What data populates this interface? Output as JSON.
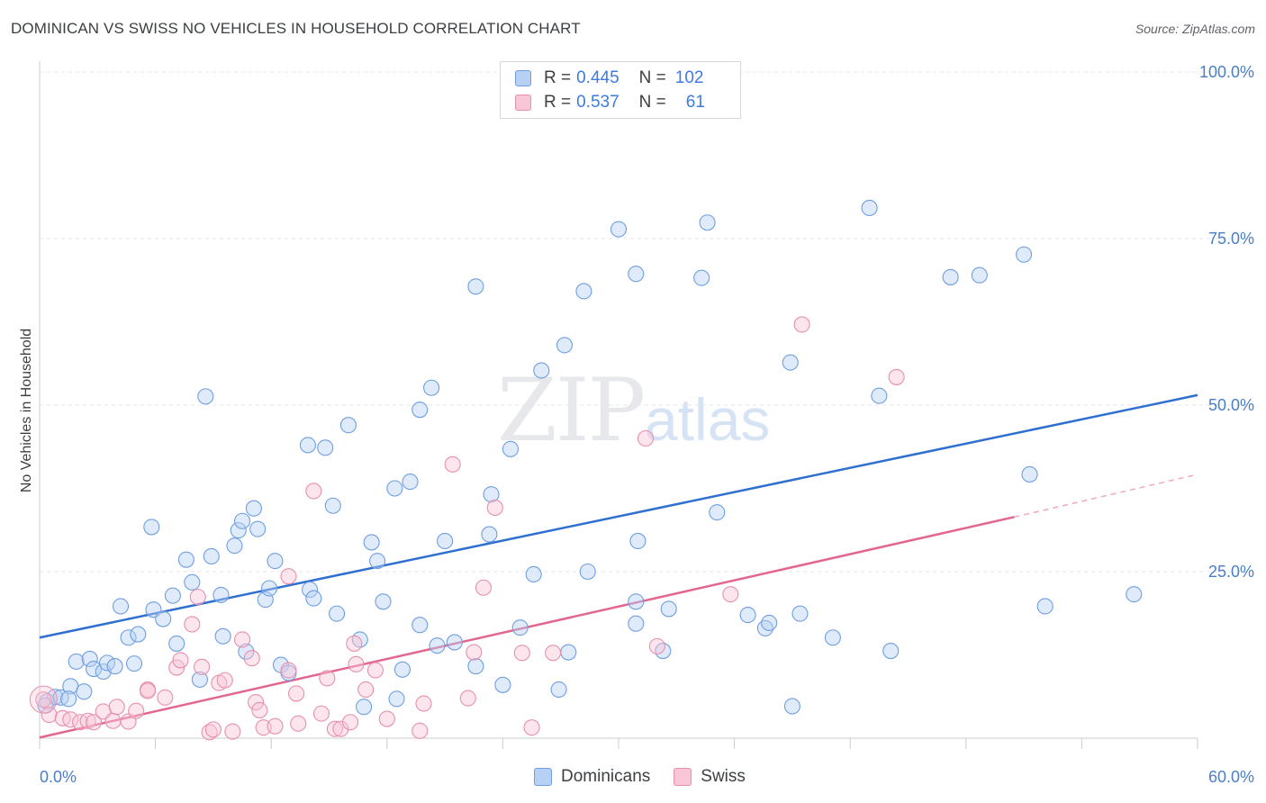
{
  "title": "DOMINICAN VS SWISS NO VEHICLES IN HOUSEHOLD CORRELATION CHART",
  "source": "Source: ZipAtlas.com",
  "watermark_left": "ZIP",
  "watermark_right": "atlas",
  "legend": {
    "rows": [
      {
        "r_label": "R =",
        "r_value": "0.445",
        "n_label": "N =",
        "n_value": "102",
        "color": "#b7d1f5",
        "border": "#6f9fe0"
      },
      {
        "r_label": "R =",
        "r_value": "0.537",
        "n_label": "N =",
        "n_value": "61",
        "color": "#f8c6d6",
        "border": "#e690ad"
      }
    ]
  },
  "bottom_legend": [
    {
      "label": "Dominicans",
      "color": "#b7d1f5",
      "border": "#6f9fe0"
    },
    {
      "label": "Swiss",
      "color": "#f8c6d6",
      "border": "#e690ad"
    }
  ],
  "chart_data": {
    "type": "scatter",
    "title": "DOMINICAN VS SWISS NO VEHICLES IN HOUSEHOLD CORRELATION CHART",
    "xlabel": "",
    "ylabel": "No Vehicles in Household",
    "xlim": [
      0,
      60
    ],
    "ylim": [
      0,
      100
    ],
    "x_ticks": [
      "0.0%",
      "60.0%"
    ],
    "y_ticks": [
      {
        "value": 25,
        "label": "25.0%"
      },
      {
        "value": 50,
        "label": "50.0%"
      },
      {
        "value": 75,
        "label": "75.0%"
      },
      {
        "value": 100,
        "label": "100.0%"
      }
    ],
    "grid": true,
    "legend_position": "top-center",
    "series": [
      {
        "name": "Dominicans",
        "color": "#6f9fe0",
        "fill": "rgba(183,209,245,0.45)",
        "trend": {
          "x": [
            0,
            60
          ],
          "y": [
            15.1,
            51.5
          ],
          "color": "#2f6fd0"
        },
        "points": [
          [
            0.4,
            5.5
          ],
          [
            0.8,
            6.2
          ],
          [
            1.1,
            6.1
          ],
          [
            1.6,
            7.8
          ],
          [
            1.9,
            11.5
          ],
          [
            2.3,
            7.0
          ],
          [
            2.6,
            11.9
          ],
          [
            2.8,
            10.4
          ],
          [
            3.3,
            10.0
          ],
          [
            3.5,
            11.3
          ],
          [
            3.9,
            10.8
          ],
          [
            4.2,
            19.8
          ],
          [
            4.6,
            15.1
          ],
          [
            4.9,
            11.2
          ],
          [
            5.1,
            15.6
          ],
          [
            5.8,
            31.7
          ],
          [
            5.9,
            19.3
          ],
          [
            6.4,
            17.9
          ],
          [
            6.9,
            21.4
          ],
          [
            7.1,
            14.2
          ],
          [
            7.6,
            26.8
          ],
          [
            7.9,
            23.4
          ],
          [
            8.3,
            8.8
          ],
          [
            8.6,
            51.3
          ],
          [
            8.9,
            27.3
          ],
          [
            9.4,
            21.5
          ],
          [
            9.5,
            15.3
          ],
          [
            10.1,
            28.9
          ],
          [
            10.3,
            31.2
          ],
          [
            10.5,
            32.6
          ],
          [
            10.7,
            13.0
          ],
          [
            11.1,
            34.5
          ],
          [
            11.3,
            31.4
          ],
          [
            11.7,
            20.8
          ],
          [
            11.9,
            22.5
          ],
          [
            12.2,
            26.6
          ],
          [
            12.5,
            11.0
          ],
          [
            12.9,
            9.8
          ],
          [
            13.9,
            44.0
          ],
          [
            14.0,
            22.3
          ],
          [
            14.2,
            21.0
          ],
          [
            14.8,
            43.6
          ],
          [
            15.2,
            34.9
          ],
          [
            15.4,
            18.7
          ],
          [
            16.0,
            47.0
          ],
          [
            16.6,
            14.8
          ],
          [
            16.8,
            4.7
          ],
          [
            17.2,
            29.4
          ],
          [
            17.5,
            26.6
          ],
          [
            17.8,
            20.5
          ],
          [
            18.4,
            37.5
          ],
          [
            18.5,
            5.9
          ],
          [
            18.8,
            10.3
          ],
          [
            19.2,
            38.5
          ],
          [
            19.7,
            17.0
          ],
          [
            19.7,
            49.3
          ],
          [
            20.3,
            52.6
          ],
          [
            20.6,
            13.9
          ],
          [
            21.0,
            29.6
          ],
          [
            21.5,
            14.4
          ],
          [
            22.6,
            67.8
          ],
          [
            22.6,
            10.8
          ],
          [
            23.3,
            30.6
          ],
          [
            23.4,
            36.6
          ],
          [
            24.0,
            8.0
          ],
          [
            24.4,
            43.4
          ],
          [
            24.9,
            16.6
          ],
          [
            25.6,
            24.6
          ],
          [
            26.0,
            55.2
          ],
          [
            26.9,
            7.3
          ],
          [
            27.2,
            59.0
          ],
          [
            27.4,
            12.9
          ],
          [
            28.2,
            67.1
          ],
          [
            28.4,
            25.0
          ],
          [
            30.0,
            76.4
          ],
          [
            30.9,
            20.5
          ],
          [
            30.9,
            69.7
          ],
          [
            30.9,
            17.2
          ],
          [
            31.0,
            29.6
          ],
          [
            32.3,
            13.1
          ],
          [
            32.6,
            19.4
          ],
          [
            34.3,
            69.1
          ],
          [
            34.6,
            77.4
          ],
          [
            35.1,
            33.9
          ],
          [
            36.7,
            18.5
          ],
          [
            37.6,
            16.5
          ],
          [
            37.8,
            17.3
          ],
          [
            38.9,
            56.4
          ],
          [
            39.0,
            4.8
          ],
          [
            39.4,
            18.7
          ],
          [
            41.1,
            15.1
          ],
          [
            43.0,
            79.6
          ],
          [
            43.5,
            51.4
          ],
          [
            44.1,
            13.1
          ],
          [
            47.2,
            69.2
          ],
          [
            48.7,
            69.5
          ],
          [
            51.0,
            72.6
          ],
          [
            51.3,
            39.6
          ],
          [
            52.1,
            19.8
          ],
          [
            56.7,
            21.6
          ],
          [
            0.3,
            4.9
          ],
          [
            1.5,
            5.9
          ]
        ]
      },
      {
        "name": "Swiss",
        "color": "#e690ad",
        "fill": "rgba(248,198,214,0.45)",
        "trend": {
          "x": [
            0,
            50.5
          ],
          "y": [
            0.1,
            33.2
          ],
          "color": "#e2668f"
        },
        "trend_dashed": {
          "x": [
            50.5,
            60
          ],
          "y": [
            33.2,
            39.6
          ],
          "color": "#f0a9c0"
        },
        "points": [
          [
            0.2,
            5.8
          ],
          [
            0.5,
            3.5
          ],
          [
            1.2,
            3.0
          ],
          [
            1.6,
            2.8
          ],
          [
            2.1,
            2.4
          ],
          [
            2.5,
            2.6
          ],
          [
            2.8,
            2.4
          ],
          [
            3.3,
            4.0
          ],
          [
            3.8,
            2.6
          ],
          [
            4.0,
            4.7
          ],
          [
            4.6,
            2.5
          ],
          [
            5.0,
            4.1
          ],
          [
            5.6,
            7.3
          ],
          [
            5.6,
            7.1
          ],
          [
            6.5,
            6.1
          ],
          [
            7.1,
            10.6
          ],
          [
            7.3,
            11.7
          ],
          [
            7.9,
            17.1
          ],
          [
            8.2,
            21.2
          ],
          [
            8.4,
            10.7
          ],
          [
            8.8,
            0.9
          ],
          [
            9.0,
            1.3
          ],
          [
            9.3,
            8.3
          ],
          [
            9.6,
            8.7
          ],
          [
            10.0,
            1.0
          ],
          [
            10.5,
            14.8
          ],
          [
            11.0,
            12.0
          ],
          [
            11.2,
            5.4
          ],
          [
            11.4,
            4.2
          ],
          [
            11.6,
            1.6
          ],
          [
            12.2,
            1.8
          ],
          [
            12.9,
            24.3
          ],
          [
            12.9,
            10.2
          ],
          [
            13.3,
            6.7
          ],
          [
            13.4,
            2.2
          ],
          [
            14.2,
            37.1
          ],
          [
            14.6,
            3.7
          ],
          [
            14.9,
            9.0
          ],
          [
            15.3,
            1.4
          ],
          [
            15.6,
            1.4
          ],
          [
            16.1,
            2.4
          ],
          [
            16.3,
            14.2
          ],
          [
            16.4,
            11.1
          ],
          [
            16.9,
            7.3
          ],
          [
            17.4,
            10.2
          ],
          [
            18.0,
            2.9
          ],
          [
            19.7,
            1.1
          ],
          [
            19.9,
            5.2
          ],
          [
            21.4,
            41.1
          ],
          [
            22.2,
            6.0
          ],
          [
            22.5,
            12.9
          ],
          [
            23.0,
            22.6
          ],
          [
            23.6,
            34.6
          ],
          [
            25.0,
            12.8
          ],
          [
            25.5,
            1.6
          ],
          [
            26.6,
            12.8
          ],
          [
            31.4,
            45.0
          ],
          [
            32.0,
            13.8
          ],
          [
            35.8,
            21.6
          ],
          [
            39.5,
            62.1
          ],
          [
            44.4,
            54.2
          ]
        ]
      }
    ]
  }
}
